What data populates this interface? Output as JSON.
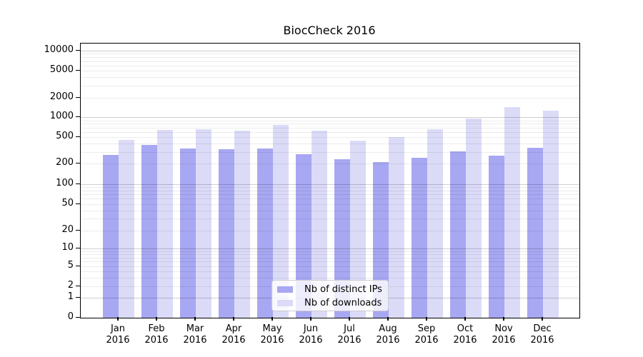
{
  "title": "BiocCheck 2016",
  "chart_data": {
    "type": "bar",
    "title": "BiocCheck 2016",
    "scale": "symlog",
    "grid": true,
    "legend_position": "lower-center",
    "ylim": [
      0,
      10000
    ],
    "yticks": [
      0,
      1,
      2,
      5,
      10,
      20,
      50,
      100,
      200,
      500,
      1000,
      2000,
      5000,
      10000
    ],
    "categories": [
      "Jan 2016",
      "Feb 2016",
      "Mar 2016",
      "Apr 2016",
      "May 2016",
      "Jun 2016",
      "Jul 2016",
      "Aug 2016",
      "Sep 2016",
      "Oct 2016",
      "Nov 2016",
      "Dec 2016"
    ],
    "series": [
      {
        "name": "Nb of distinct IPs",
        "color": "#a7a7f2",
        "values": [
          273,
          380,
          335,
          330,
          335,
          277,
          235,
          210,
          248,
          303,
          263,
          343
        ]
      },
      {
        "name": "Nb of downloads",
        "color": "#dbdbf8",
        "values": [
          458,
          648,
          652,
          630,
          762,
          626,
          443,
          505,
          662,
          960,
          1420,
          1250
        ]
      }
    ]
  }
}
